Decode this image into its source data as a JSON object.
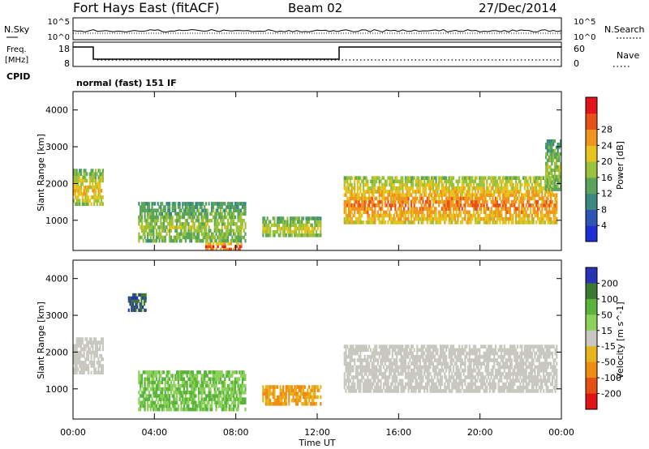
{
  "header": {
    "title": "Fort Hays East (fitACF)",
    "beam": "Beam 02",
    "date": "27/Dec/2014"
  },
  "noise_panel": {
    "left_label": "N.Sky",
    "right_label": "N.Search",
    "left_ticks": [
      "10^5",
      "10^0"
    ],
    "right_ticks": [
      "10^5",
      "10^0"
    ]
  },
  "freq_panel": {
    "left_label_1": "Freq.",
    "left_label_2": "[MHz]",
    "right_label": "Nave",
    "left_ticks": [
      "18",
      "8"
    ],
    "right_ticks": [
      "60",
      "0"
    ]
  },
  "cpid_panel": {
    "label": "CPID",
    "text": "normal (fast) 151 IF"
  },
  "y_axis": {
    "label": "Slant Range [km]",
    "ticks": [
      "1000",
      "2000",
      "3000",
      "4000"
    ]
  },
  "x_axis": {
    "label": "Time UT",
    "ticks": [
      "00:00",
      "04:00",
      "08:00",
      "12:00",
      "16:00",
      "20:00",
      "00:00"
    ]
  },
  "power_scale": {
    "label": "Power [dB]",
    "ticks": [
      "4",
      "8",
      "12",
      "16",
      "20",
      "24",
      "28"
    ],
    "colors": [
      "#1c2fd6",
      "#2d55b4",
      "#3a8a82",
      "#5aa55a",
      "#9ac23a",
      "#e6c31e",
      "#f0961e",
      "#e8501a",
      "#e0141a"
    ]
  },
  "velocity_scale": {
    "label": "Velocity [m s^-1]",
    "ticks": [
      "200",
      "100",
      "50",
      "15",
      "-15",
      "-50",
      "-100",
      "-200"
    ],
    "colors": [
      "#2832b4",
      "#3c7832",
      "#5ab43c",
      "#8cd25a",
      "#c8c8c0",
      "#e6b41e",
      "#f08c14",
      "#e65014",
      "#e01414"
    ]
  },
  "chart_data": [
    {
      "type": "heatmap",
      "title": "Power [dB]",
      "xlabel": "Time UT",
      "ylabel": "Slant Range [km]",
      "xlim": [
        0,
        24
      ],
      "ylim": [
        180,
        4500
      ],
      "zlim": [
        0,
        30
      ],
      "echo_regions": [
        {
          "t_start": 0.0,
          "t_end": 1.5,
          "range_low": 1400,
          "range_high": 2400,
          "power": 18
        },
        {
          "t_start": 3.2,
          "t_end": 8.5,
          "range_low": 400,
          "range_high": 1500,
          "power": 14
        },
        {
          "t_start": 6.5,
          "t_end": 8.3,
          "range_low": 180,
          "range_high": 400,
          "power": 26
        },
        {
          "t_start": 9.3,
          "t_end": 12.2,
          "range_low": 550,
          "range_high": 1100,
          "power": 16
        },
        {
          "t_start": 13.3,
          "t_end": 23.8,
          "range_low": 900,
          "range_high": 2200,
          "power": 22
        },
        {
          "t_start": 23.2,
          "t_end": 24.0,
          "range_low": 1800,
          "range_high": 3200,
          "power": 14
        }
      ]
    },
    {
      "type": "heatmap",
      "title": "Velocity [m s^-1]",
      "xlabel": "Time UT",
      "ylabel": "Slant Range [km]",
      "xlim": [
        0,
        24
      ],
      "ylim": [
        180,
        4500
      ],
      "zlim": [
        -250,
        250
      ],
      "echo_regions": [
        {
          "t_start": 0.0,
          "t_end": 1.5,
          "range_low": 1400,
          "range_high": 2400,
          "velocity": 0
        },
        {
          "t_start": 3.2,
          "t_end": 8.5,
          "range_low": 400,
          "range_high": 1500,
          "velocity": 50
        },
        {
          "t_start": 9.3,
          "t_end": 12.2,
          "range_low": 550,
          "range_high": 1100,
          "velocity": -50
        },
        {
          "t_start": 13.3,
          "t_end": 23.8,
          "range_low": 900,
          "range_high": 2200,
          "velocity": 0
        },
        {
          "t_start": 2.7,
          "t_end": 3.6,
          "range_low": 3100,
          "range_high": 3600,
          "velocity": 200
        }
      ]
    }
  ]
}
